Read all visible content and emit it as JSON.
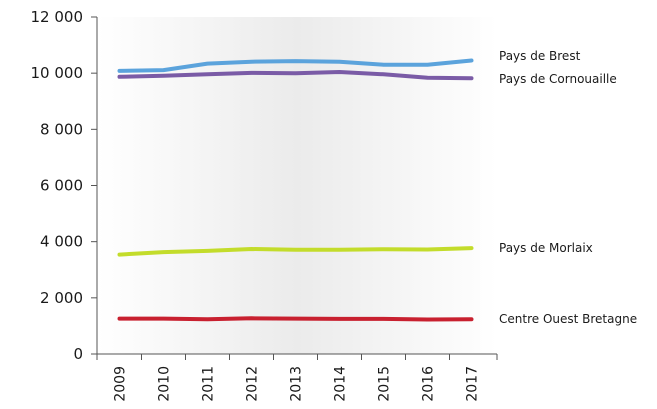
{
  "chart_data": {
    "type": "line",
    "title": "",
    "xlabel": "",
    "ylabel": "",
    "x": [
      "2009",
      "2010",
      "2011",
      "2012",
      "2013",
      "2014",
      "2015",
      "2016",
      "2017"
    ],
    "ylim": [
      0,
      12000
    ],
    "yticks": [
      0,
      2000,
      4000,
      6000,
      8000,
      10000,
      12000
    ],
    "ytick_labels": [
      "0",
      "2 000",
      "4 000",
      "6 000",
      "8 000",
      "10 000",
      "12 000"
    ],
    "grid": false,
    "legend": "right",
    "series": [
      {
        "name": "Pays de Brest",
        "color": "#5ba3dc",
        "values": [
          10080,
          10110,
          10340,
          10410,
          10430,
          10410,
          10300,
          10300,
          10450
        ]
      },
      {
        "name": "Pays de Cornouaille",
        "color": "#7a5ba6",
        "values": [
          9870,
          9910,
          9960,
          10010,
          10000,
          10040,
          9960,
          9840,
          9820
        ]
      },
      {
        "name": "Pays de Morlaix",
        "color": "#c3dc2b",
        "values": [
          3540,
          3630,
          3670,
          3740,
          3710,
          3710,
          3730,
          3720,
          3770
        ]
      },
      {
        "name": "Centre Ouest Bretagne",
        "color": "#c8202f",
        "values": [
          1260,
          1260,
          1240,
          1270,
          1260,
          1250,
          1250,
          1230,
          1240
        ]
      }
    ]
  }
}
